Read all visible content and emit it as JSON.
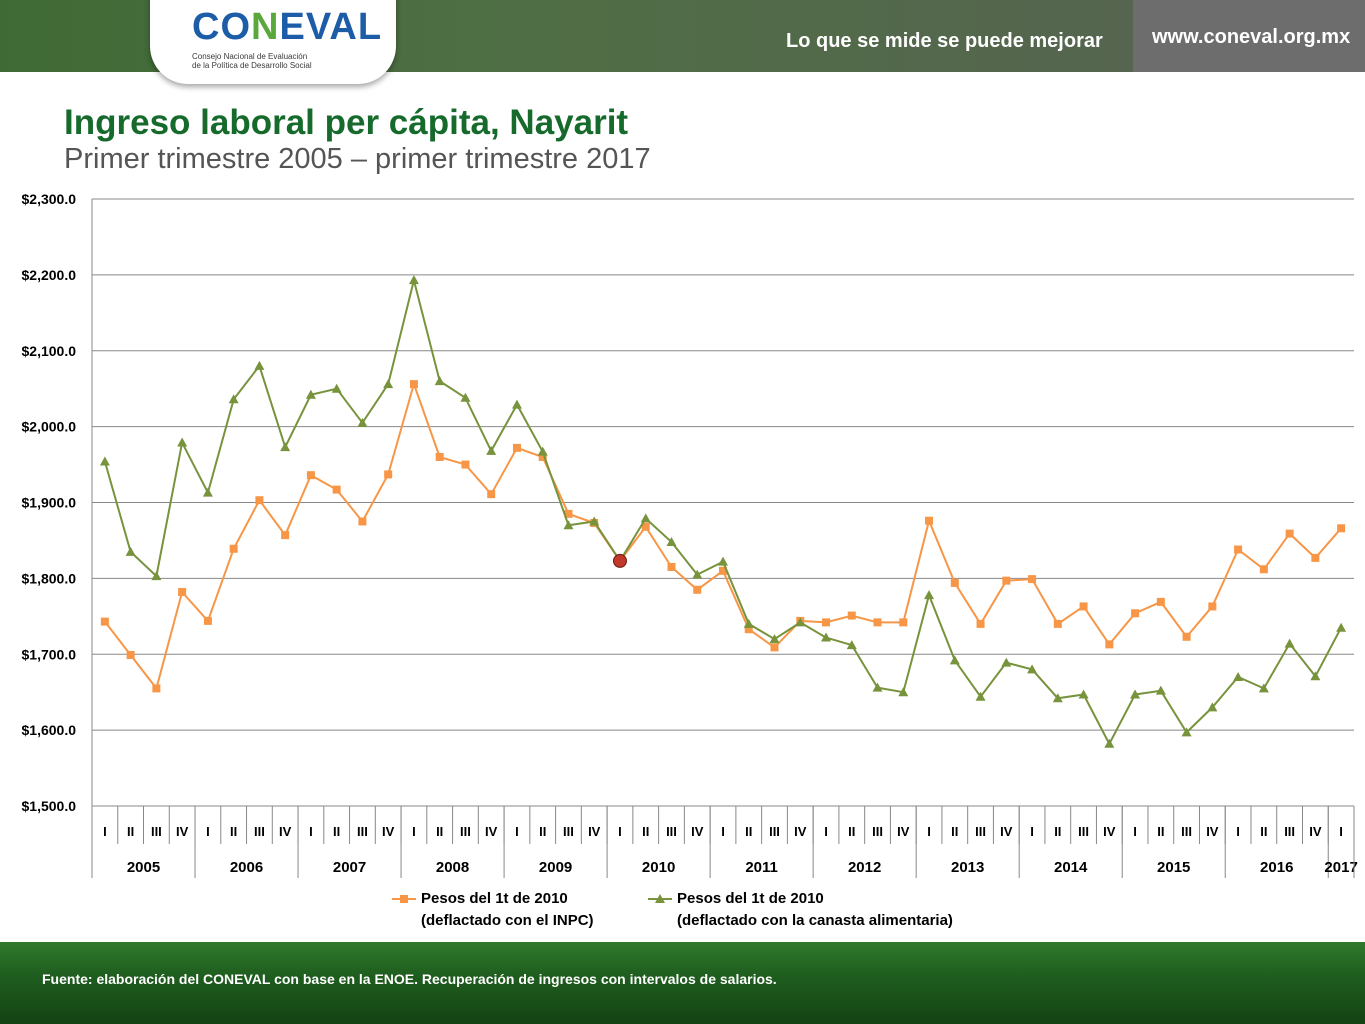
{
  "header": {
    "logo": "CONEVAL",
    "logo_sub_1": "Consejo Nacional de Evaluación",
    "logo_sub_2": "de la Política de Desarrollo Social",
    "slogan": "Lo que se mide se puede mejorar",
    "url": "www.coneval.org.mx"
  },
  "title": "Ingreso laboral per cápita, Nayarit",
  "subtitle": "Primer trimestre 2005 – primer trimestre 2017",
  "footer": "Fuente: elaboración del CONEVAL con base en la ENOE. Recuperación de ingresos con intervalos de salarios.",
  "colors": {
    "inpc": "#f79646",
    "canasta": "#77933c",
    "highlight": "#c0392b"
  },
  "chart_data": {
    "type": "line",
    "ylim": [
      1500,
      2300
    ],
    "yticks": [
      "$1,500.0",
      "$1,600.0",
      "$1,700.0",
      "$1,800.0",
      "$1,900.0",
      "$2,000.0",
      "$2,100.0",
      "$2,200.0",
      "$2,300.0"
    ],
    "quarters": [
      "I",
      "II",
      "III",
      "IV",
      "I",
      "II",
      "III",
      "IV",
      "I",
      "II",
      "III",
      "IV",
      "I",
      "II",
      "III",
      "IV",
      "I",
      "II",
      "III",
      "IV",
      "I",
      "II",
      "III",
      "IV",
      "I",
      "II",
      "III",
      "IV",
      "I",
      "II",
      "III",
      "IV",
      "I",
      "II",
      "III",
      "IV",
      "I",
      "II",
      "III",
      "IV",
      "I",
      "II",
      "III",
      "IV",
      "I",
      "II",
      "III",
      "IV",
      "I"
    ],
    "years": [
      "2005",
      "2006",
      "2007",
      "2008",
      "2009",
      "2010",
      "2011",
      "2012",
      "2013",
      "2014",
      "2015",
      "2016",
      "2017"
    ],
    "highlight_index": 20,
    "highlight_value": 1823,
    "series": [
      {
        "name": "Pesos del 1t de 2010 (deflactado con el INPC)",
        "legend_1": "Pesos del 1t de 2010",
        "legend_2": "(deflactado con el INPC)",
        "marker": "square",
        "values": [
          1743,
          1699,
          1655,
          1782,
          1744,
          1839,
          1903,
          1857,
          1936,
          1917,
          1875,
          1937,
          2056,
          1960,
          1950,
          1911,
          1972,
          1960,
          1885,
          1873,
          1823,
          1868,
          1815,
          1785,
          1810,
          1733,
          1709,
          1744,
          1742,
          1751,
          1742,
          1742,
          1876,
          1794,
          1740,
          1797,
          1799,
          1740,
          1763,
          1713,
          1754,
          1769,
          1723,
          1763,
          1838,
          1812,
          1859,
          1827,
          1866
        ]
      },
      {
        "name": "Pesos del 1t de 2010 (deflactado con la canasta alimentaria)",
        "legend_1": "Pesos del 1t de 2010",
        "legend_2": "(deflactado con la canasta alimentaria)",
        "marker": "triangle",
        "values": [
          1954,
          1835,
          1803,
          1979,
          1913,
          2036,
          2080,
          1973,
          2042,
          2050,
          2005,
          2056,
          2193,
          2060,
          2038,
          1968,
          2029,
          1967,
          1870,
          1875,
          1823,
          1879,
          1848,
          1805,
          1822,
          1740,
          1720,
          1742,
          1722,
          1712,
          1656,
          1650,
          1778,
          1692,
          1644,
          1689,
          1680,
          1642,
          1647,
          1582,
          1647,
          1652,
          1597,
          1630,
          1670,
          1655,
          1714,
          1671,
          1735
        ]
      }
    ]
  }
}
